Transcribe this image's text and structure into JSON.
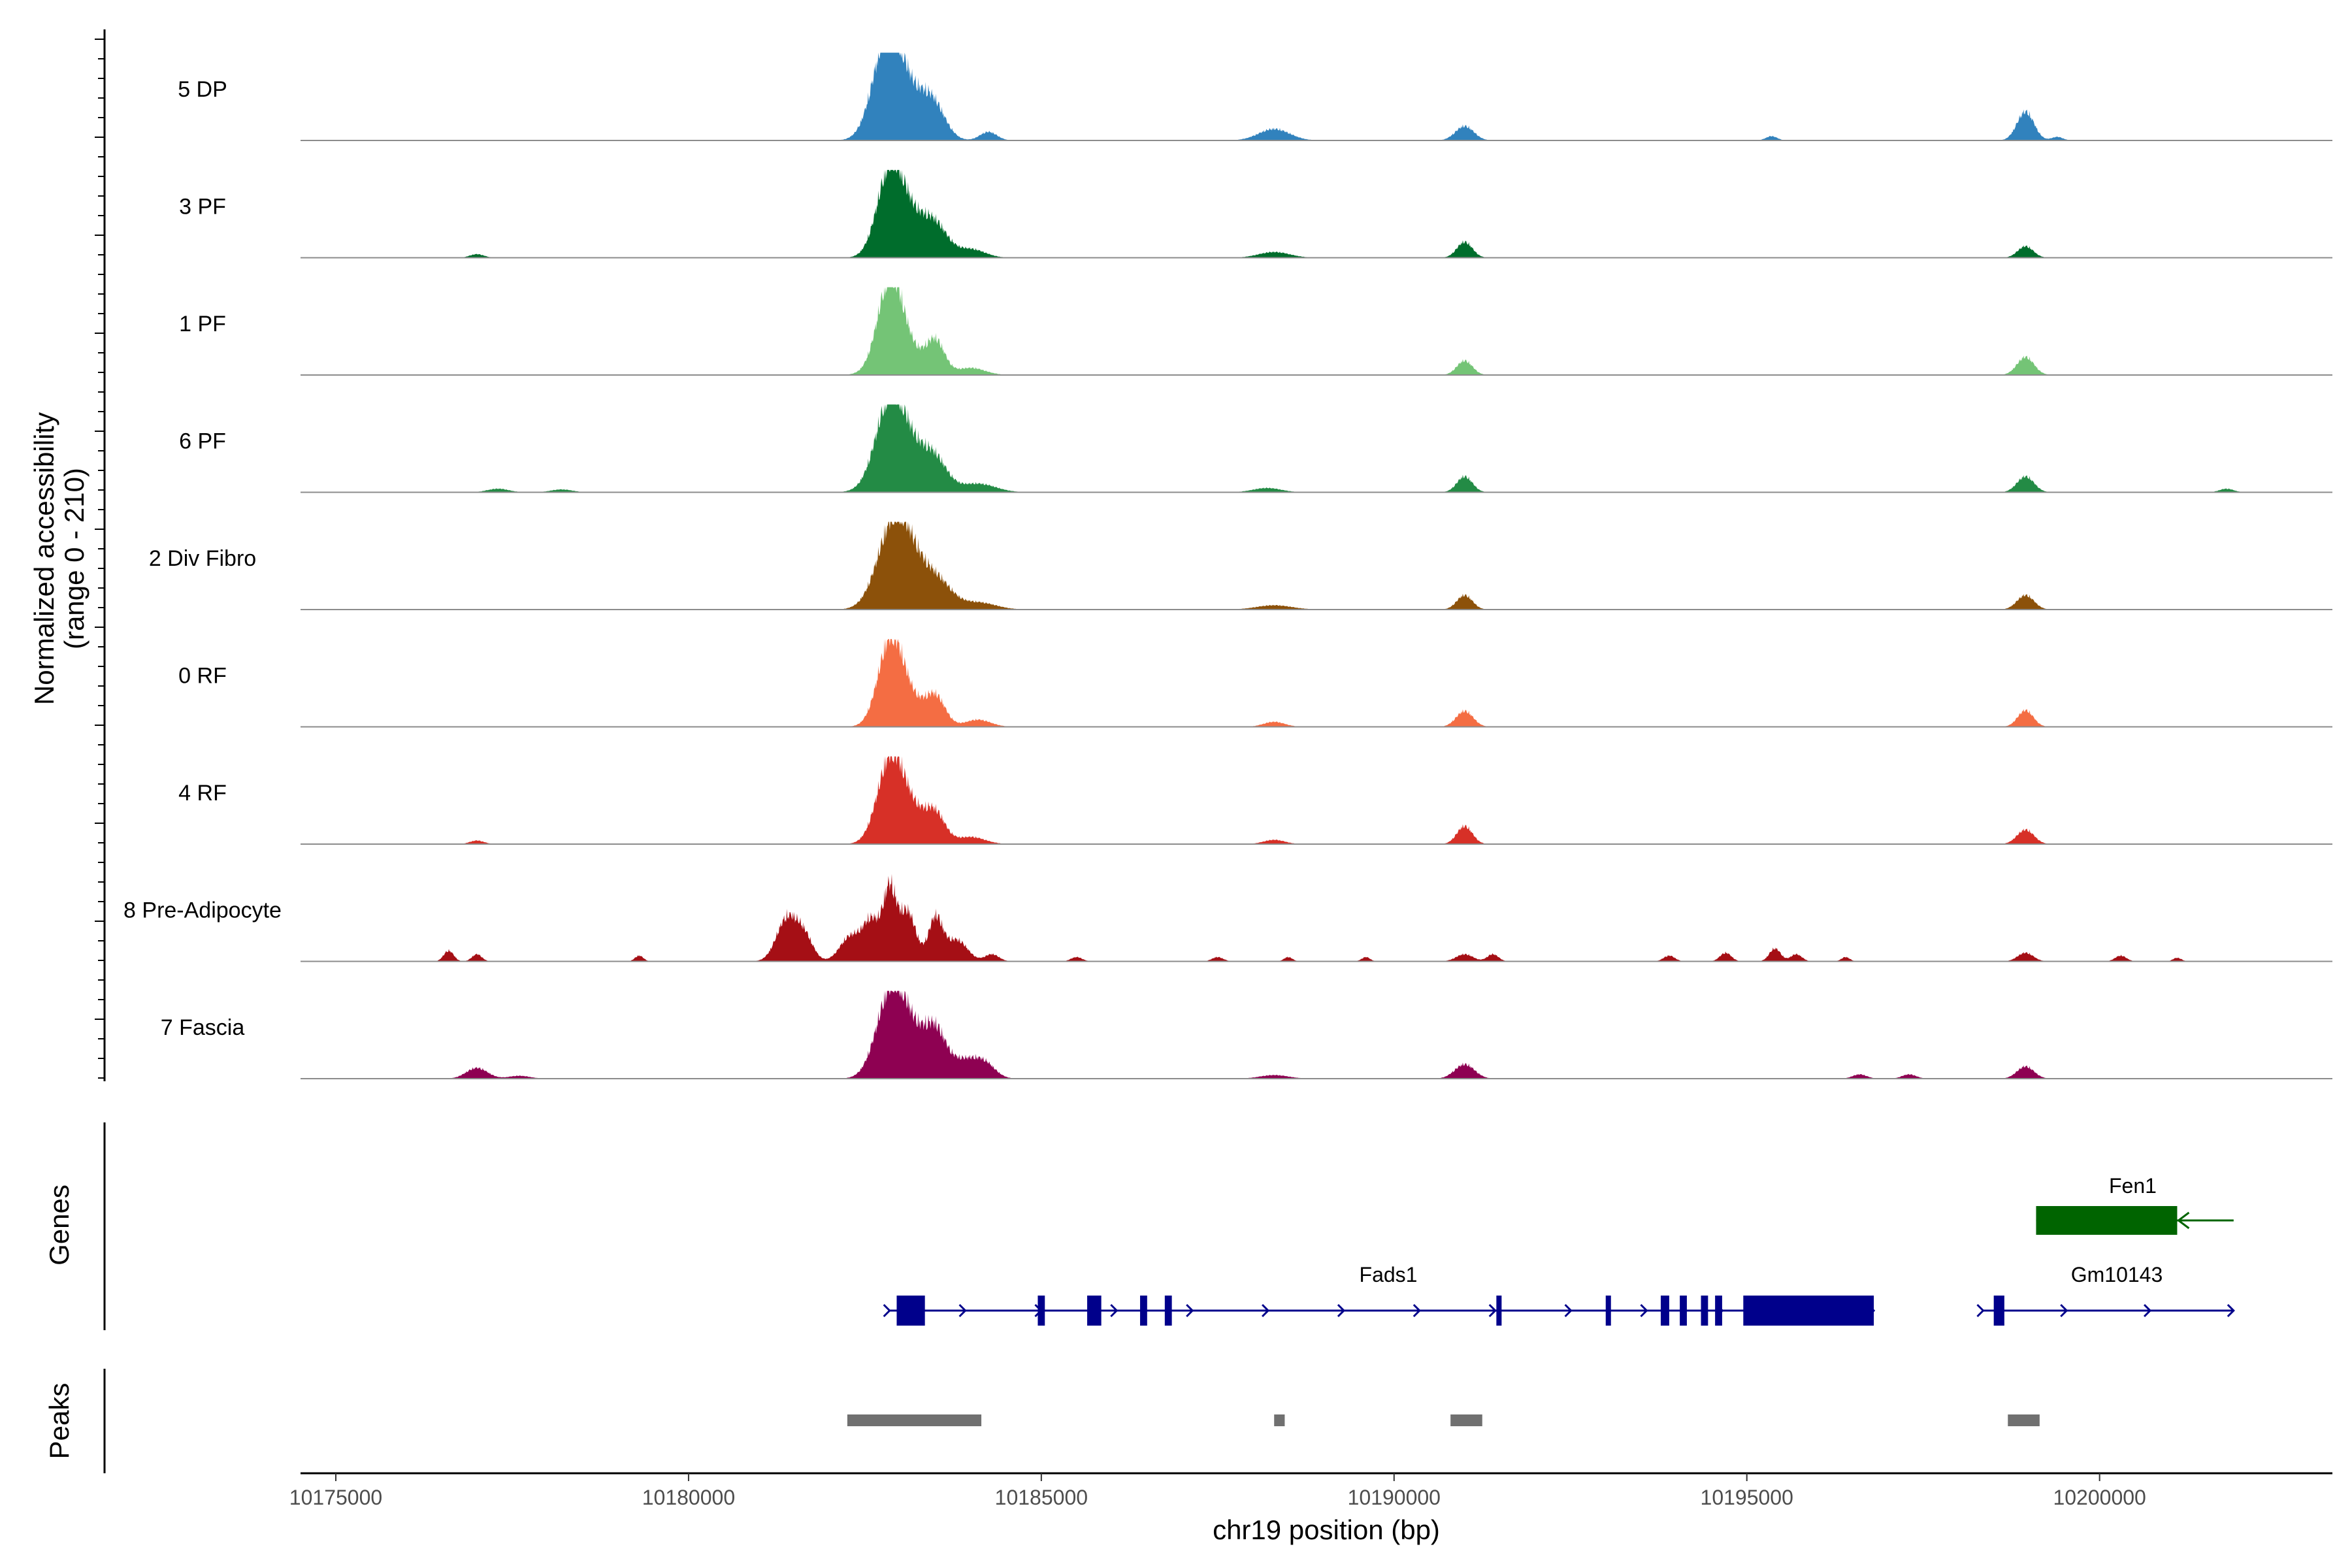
{
  "chart_data": {
    "type": "area",
    "chromosome": "chr19",
    "xlabel": "chr19 position (bp)",
    "ylabel_line1": "Normalized accessibility",
    "ylabel_line2": "(range 0 - 210)",
    "ylim": [
      0,
      210
    ],
    "xlim": [
      10174500,
      10203300
    ],
    "x_ticks": [
      10175000,
      10180000,
      10185000,
      10190000,
      10195000,
      10200000
    ],
    "x_tick_labels": [
      "10175000",
      "10180000",
      "10185000",
      "10190000",
      "10195000",
      "10200000"
    ],
    "tracks": [
      {
        "name": "5 DP",
        "color": "#3182bd",
        "peaks": [
          [
            10182800,
            1.0,
            200
          ],
          [
            10183000,
            0.7,
            250
          ],
          [
            10183450,
            0.5,
            180
          ],
          [
            10184250,
            0.12,
            120
          ],
          [
            10188300,
            0.16,
            220
          ],
          [
            10191000,
            0.2,
            130
          ],
          [
            10195350,
            0.06,
            80
          ],
          [
            10198950,
            0.4,
            120
          ],
          [
            10199400,
            0.05,
            80
          ]
        ]
      },
      {
        "name": "3 PF",
        "color": "#006d2c",
        "peaks": [
          [
            10177000,
            0.05,
            100
          ],
          [
            10182850,
            1.0,
            180
          ],
          [
            10183100,
            0.55,
            250
          ],
          [
            10183500,
            0.38,
            180
          ],
          [
            10184000,
            0.12,
            200
          ],
          [
            10188300,
            0.08,
            220
          ],
          [
            10191000,
            0.22,
            110
          ],
          [
            10198950,
            0.16,
            110
          ]
        ]
      },
      {
        "name": "1 PF",
        "color": "#74c476",
        "peaks": [
          [
            10182850,
            1.0,
            170
          ],
          [
            10183000,
            0.45,
            250
          ],
          [
            10183500,
            0.45,
            130
          ],
          [
            10184000,
            0.1,
            200
          ],
          [
            10191000,
            0.2,
            110
          ],
          [
            10198950,
            0.25,
            120
          ]
        ]
      },
      {
        "name": "6 PF",
        "color": "#238b45",
        "peaks": [
          [
            10177300,
            0.05,
            150
          ],
          [
            10178200,
            0.04,
            150
          ],
          [
            10182850,
            0.95,
            200
          ],
          [
            10183100,
            0.6,
            300
          ],
          [
            10183500,
            0.3,
            170
          ],
          [
            10184100,
            0.12,
            250
          ],
          [
            10188200,
            0.06,
            200
          ],
          [
            10191000,
            0.22,
            110
          ],
          [
            10198950,
            0.22,
            120
          ],
          [
            10201800,
            0.05,
            100
          ]
        ]
      },
      {
        "name": "2 Div Fibro",
        "color": "#8c510a",
        "peaks": [
          [
            10182900,
            1.0,
            230
          ],
          [
            10183150,
            0.5,
            260
          ],
          [
            10183550,
            0.3,
            200
          ],
          [
            10184100,
            0.1,
            250
          ],
          [
            10188300,
            0.06,
            250
          ],
          [
            10191000,
            0.2,
            110
          ],
          [
            10198950,
            0.2,
            120
          ]
        ]
      },
      {
        "name": "0 RF",
        "color": "#f46d43",
        "peaks": [
          [
            10182850,
            0.95,
            170
          ],
          [
            10183050,
            0.45,
            230
          ],
          [
            10183500,
            0.4,
            140
          ],
          [
            10184100,
            0.1,
            180
          ],
          [
            10188300,
            0.07,
            150
          ],
          [
            10191000,
            0.22,
            120
          ],
          [
            10198950,
            0.23,
            110
          ]
        ]
      },
      {
        "name": "4 RF",
        "color": "#d73027",
        "peaks": [
          [
            10177000,
            0.05,
            100
          ],
          [
            10182850,
            0.95,
            180
          ],
          [
            10183100,
            0.5,
            250
          ],
          [
            10183500,
            0.35,
            140
          ],
          [
            10184000,
            0.1,
            200
          ],
          [
            10188300,
            0.06,
            150
          ],
          [
            10191000,
            0.25,
            110
          ],
          [
            10198950,
            0.2,
            120
          ]
        ]
      },
      {
        "name": "8 Pre-Adipocyte",
        "color": "#a50f15",
        "peaks": [
          [
            10176600,
            0.15,
            70
          ],
          [
            10177000,
            0.1,
            70
          ],
          [
            10179300,
            0.08,
            60
          ],
          [
            10181400,
            0.6,
            150
          ],
          [
            10181650,
            0.3,
            120
          ],
          [
            10182300,
            0.35,
            150
          ],
          [
            10182600,
            0.55,
            120
          ],
          [
            10182850,
            0.95,
            90
          ],
          [
            10183100,
            0.7,
            120
          ],
          [
            10183500,
            0.6,
            100
          ],
          [
            10183800,
            0.3,
            150
          ],
          [
            10184300,
            0.1,
            100
          ],
          [
            10185500,
            0.06,
            80
          ],
          [
            10187500,
            0.06,
            80
          ],
          [
            10188500,
            0.06,
            60
          ],
          [
            10189600,
            0.06,
            60
          ],
          [
            10191000,
            0.1,
            120
          ],
          [
            10191400,
            0.1,
            80
          ],
          [
            10193900,
            0.08,
            80
          ],
          [
            10194700,
            0.12,
            80
          ],
          [
            10195400,
            0.18,
            80
          ],
          [
            10195700,
            0.1,
            80
          ],
          [
            10196400,
            0.06,
            60
          ],
          [
            10198950,
            0.12,
            110
          ],
          [
            10200300,
            0.08,
            80
          ],
          [
            10201100,
            0.05,
            60
          ]
        ]
      },
      {
        "name": "7 Fascia",
        "color": "#8e0152",
        "peaks": [
          [
            10177000,
            0.15,
            150
          ],
          [
            10177600,
            0.04,
            150
          ],
          [
            10182850,
            0.9,
            200
          ],
          [
            10183100,
            0.65,
            250
          ],
          [
            10183500,
            0.55,
            150
          ],
          [
            10183900,
            0.25,
            200
          ],
          [
            10184200,
            0.18,
            150
          ],
          [
            10188300,
            0.05,
            200
          ],
          [
            10191000,
            0.2,
            140
          ],
          [
            10196600,
            0.06,
            100
          ],
          [
            10197300,
            0.06,
            100
          ],
          [
            10198950,
            0.17,
            120
          ]
        ]
      }
    ],
    "genes": [
      {
        "name": "Fen1",
        "color": "#006400",
        "strand": "-",
        "start": 10199100,
        "end": 10201900,
        "exons": [
          [
            10199100,
            10201100
          ]
        ]
      },
      {
        "name": "Fads1",
        "color": "#00008b",
        "strand": "+",
        "start": 10182850,
        "end": 10196800,
        "exons": [
          [
            10182950,
            10183350
          ],
          [
            10184950,
            10185050
          ],
          [
            10185650,
            10185850
          ],
          [
            10186400,
            10186500
          ],
          [
            10186750,
            10186850
          ],
          [
            10191450,
            10191520
          ],
          [
            10193000,
            10193070
          ],
          [
            10193780,
            10193900
          ],
          [
            10194050,
            10194150
          ],
          [
            10194350,
            10194450
          ],
          [
            10194550,
            10194650
          ],
          [
            10194950,
            10196800
          ]
        ]
      },
      {
        "name": "Gm10143",
        "color": "#00008b",
        "strand": "+",
        "start": 10198350,
        "end": 10201900,
        "exons": [
          [
            10198500,
            10198650
          ]
        ]
      }
    ],
    "panels": {
      "genes_title": "Genes",
      "peaks_title": "Peaks"
    },
    "peak_regions": [
      [
        10182250,
        10184150
      ],
      [
        10188300,
        10188450
      ],
      [
        10190800,
        10191250
      ],
      [
        10198700,
        10199150
      ]
    ],
    "peak_color": "#707070"
  }
}
